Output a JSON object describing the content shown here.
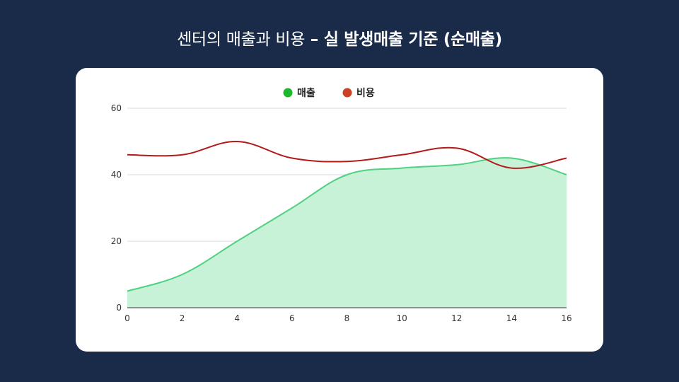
{
  "title": {
    "normal": "센터의 매출과 비용",
    "separator": " – ",
    "bold": "실 발생매출 기준 (순매출)"
  },
  "chart_data": {
    "type": "area",
    "x": [
      0,
      2,
      4,
      6,
      8,
      10,
      12,
      14,
      16
    ],
    "series": [
      {
        "name": "매출",
        "kind": "area",
        "color": "#4fd17f",
        "fill": "#c8f2d8",
        "values": [
          5,
          10,
          20,
          30,
          40,
          42,
          43,
          45,
          40
        ]
      },
      {
        "name": "비용",
        "kind": "line",
        "color": "#b31b1b",
        "legend_color": "#cc4125",
        "values": [
          46,
          46,
          50,
          45,
          44,
          46,
          48,
          42,
          45
        ]
      }
    ],
    "xlim": [
      0,
      16
    ],
    "ylim": [
      0,
      60
    ],
    "xticks": [
      "0",
      "2",
      "4",
      "6",
      "8",
      "10",
      "12",
      "14",
      "16"
    ],
    "yticks": [
      "0",
      "20",
      "40",
      "60"
    ],
    "legend_position": "top",
    "grid": true
  }
}
